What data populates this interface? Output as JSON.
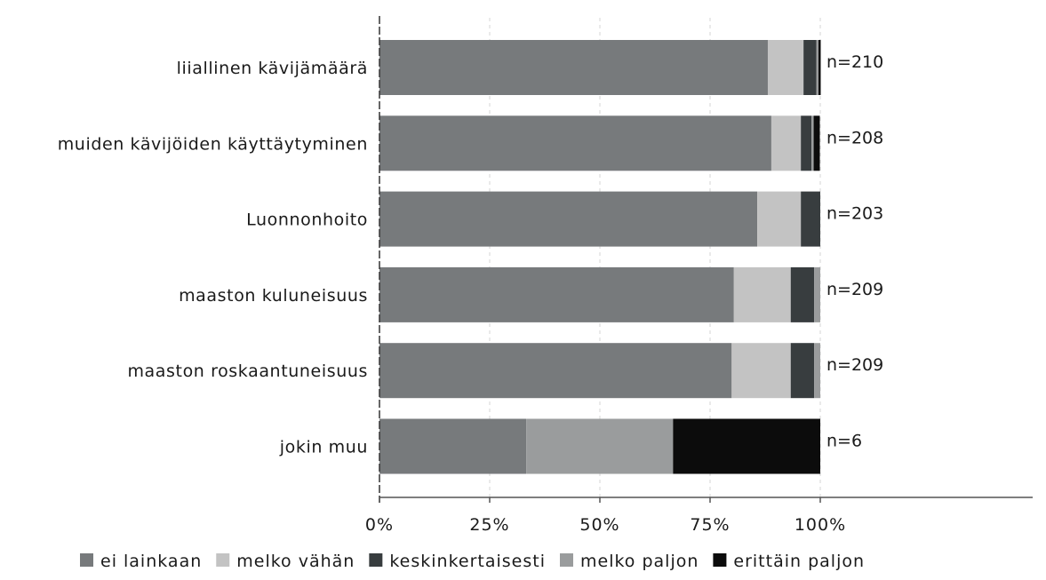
{
  "chart_data": {
    "type": "bar",
    "orientation": "horizontal",
    "stacked": "percent",
    "categories": [
      "liiallinen kävijämäärä",
      "muiden kävijöiden käyttäytyminen",
      "Luonnonhoito",
      "maaston kuluneisuus",
      "maaston roskaantuneisuus",
      "jokin muu"
    ],
    "n_labels": [
      "n=210",
      "n=208",
      "n=203",
      "n=209",
      "n=209",
      "n=6"
    ],
    "series": [
      {
        "name": "ei lainkaan",
        "color": "#777a7c",
        "values": [
          88.1,
          88.9,
          85.7,
          80.4,
          79.9,
          33.3
        ]
      },
      {
        "name": "melko vähän",
        "color": "#c3c3c3",
        "values": [
          8.1,
          6.7,
          9.9,
          12.9,
          13.4,
          0
        ]
      },
      {
        "name": "keskinkertaisesti",
        "color": "#383d3f",
        "values": [
          2.9,
          2.4,
          4.4,
          5.3,
          5.3,
          0
        ]
      },
      {
        "name": "melko paljon",
        "color": "#9a9c9d",
        "values": [
          0.5,
          0.5,
          0,
          1.4,
          1.4,
          33.3
        ]
      },
      {
        "name": "erittäin paljon",
        "color": "#0c0c0c",
        "values": [
          0.5,
          1.4,
          0,
          0,
          0,
          33.4
        ]
      }
    ],
    "x_ticks": [
      "0%",
      "25%",
      "50%",
      "75%",
      "100%"
    ],
    "xlim": [
      0,
      100
    ],
    "grid": "vertical dashed",
    "legend_position": "bottom"
  }
}
